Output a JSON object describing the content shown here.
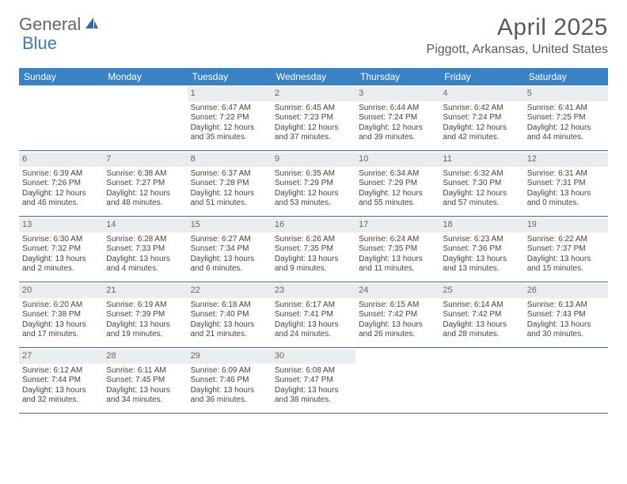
{
  "logo": {
    "text1": "General",
    "text2": "Blue"
  },
  "title": "April 2025",
  "location": "Piggott, Arkansas, United States",
  "colors": {
    "header_bg": "#3b82c4",
    "header_text": "#ffffff",
    "daynum_bg": "#e9edf0",
    "week_border": "#3b6fa0",
    "logo_accent": "#3b7ab8"
  },
  "day_names": [
    "Sunday",
    "Monday",
    "Tuesday",
    "Wednesday",
    "Thursday",
    "Friday",
    "Saturday"
  ],
  "weeks": [
    [
      {
        "n": "",
        "l1": "",
        "l2": "",
        "l3": "",
        "l4": ""
      },
      {
        "n": "",
        "l1": "",
        "l2": "",
        "l3": "",
        "l4": ""
      },
      {
        "n": "1",
        "l1": "Sunrise: 6:47 AM",
        "l2": "Sunset: 7:22 PM",
        "l3": "Daylight: 12 hours",
        "l4": "and 35 minutes."
      },
      {
        "n": "2",
        "l1": "Sunrise: 6:45 AM",
        "l2": "Sunset: 7:23 PM",
        "l3": "Daylight: 12 hours",
        "l4": "and 37 minutes."
      },
      {
        "n": "3",
        "l1": "Sunrise: 6:44 AM",
        "l2": "Sunset: 7:24 PM",
        "l3": "Daylight: 12 hours",
        "l4": "and 39 minutes."
      },
      {
        "n": "4",
        "l1": "Sunrise: 6:42 AM",
        "l2": "Sunset: 7:24 PM",
        "l3": "Daylight: 12 hours",
        "l4": "and 42 minutes."
      },
      {
        "n": "5",
        "l1": "Sunrise: 6:41 AM",
        "l2": "Sunset: 7:25 PM",
        "l3": "Daylight: 12 hours",
        "l4": "and 44 minutes."
      }
    ],
    [
      {
        "n": "6",
        "l1": "Sunrise: 6:39 AM",
        "l2": "Sunset: 7:26 PM",
        "l3": "Daylight: 12 hours",
        "l4": "and 46 minutes."
      },
      {
        "n": "7",
        "l1": "Sunrise: 6:38 AM",
        "l2": "Sunset: 7:27 PM",
        "l3": "Daylight: 12 hours",
        "l4": "and 48 minutes."
      },
      {
        "n": "8",
        "l1": "Sunrise: 6:37 AM",
        "l2": "Sunset: 7:28 PM",
        "l3": "Daylight: 12 hours",
        "l4": "and 51 minutes."
      },
      {
        "n": "9",
        "l1": "Sunrise: 6:35 AM",
        "l2": "Sunset: 7:29 PM",
        "l3": "Daylight: 12 hours",
        "l4": "and 53 minutes."
      },
      {
        "n": "10",
        "l1": "Sunrise: 6:34 AM",
        "l2": "Sunset: 7:29 PM",
        "l3": "Daylight: 12 hours",
        "l4": "and 55 minutes."
      },
      {
        "n": "11",
        "l1": "Sunrise: 6:32 AM",
        "l2": "Sunset: 7:30 PM",
        "l3": "Daylight: 12 hours",
        "l4": "and 57 minutes."
      },
      {
        "n": "12",
        "l1": "Sunrise: 6:31 AM",
        "l2": "Sunset: 7:31 PM",
        "l3": "Daylight: 13 hours",
        "l4": "and 0 minutes."
      }
    ],
    [
      {
        "n": "13",
        "l1": "Sunrise: 6:30 AM",
        "l2": "Sunset: 7:32 PM",
        "l3": "Daylight: 13 hours",
        "l4": "and 2 minutes."
      },
      {
        "n": "14",
        "l1": "Sunrise: 6:28 AM",
        "l2": "Sunset: 7:33 PM",
        "l3": "Daylight: 13 hours",
        "l4": "and 4 minutes."
      },
      {
        "n": "15",
        "l1": "Sunrise: 6:27 AM",
        "l2": "Sunset: 7:34 PM",
        "l3": "Daylight: 13 hours",
        "l4": "and 6 minutes."
      },
      {
        "n": "16",
        "l1": "Sunrise: 6:26 AM",
        "l2": "Sunset: 7:35 PM",
        "l3": "Daylight: 13 hours",
        "l4": "and 9 minutes."
      },
      {
        "n": "17",
        "l1": "Sunrise: 6:24 AM",
        "l2": "Sunset: 7:35 PM",
        "l3": "Daylight: 13 hours",
        "l4": "and 11 minutes."
      },
      {
        "n": "18",
        "l1": "Sunrise: 6:23 AM",
        "l2": "Sunset: 7:36 PM",
        "l3": "Daylight: 13 hours",
        "l4": "and 13 minutes."
      },
      {
        "n": "19",
        "l1": "Sunrise: 6:22 AM",
        "l2": "Sunset: 7:37 PM",
        "l3": "Daylight: 13 hours",
        "l4": "and 15 minutes."
      }
    ],
    [
      {
        "n": "20",
        "l1": "Sunrise: 6:20 AM",
        "l2": "Sunset: 7:38 PM",
        "l3": "Daylight: 13 hours",
        "l4": "and 17 minutes."
      },
      {
        "n": "21",
        "l1": "Sunrise: 6:19 AM",
        "l2": "Sunset: 7:39 PM",
        "l3": "Daylight: 13 hours",
        "l4": "and 19 minutes."
      },
      {
        "n": "22",
        "l1": "Sunrise: 6:18 AM",
        "l2": "Sunset: 7:40 PM",
        "l3": "Daylight: 13 hours",
        "l4": "and 21 minutes."
      },
      {
        "n": "23",
        "l1": "Sunrise: 6:17 AM",
        "l2": "Sunset: 7:41 PM",
        "l3": "Daylight: 13 hours",
        "l4": "and 24 minutes."
      },
      {
        "n": "24",
        "l1": "Sunrise: 6:15 AM",
        "l2": "Sunset: 7:42 PM",
        "l3": "Daylight: 13 hours",
        "l4": "and 26 minutes."
      },
      {
        "n": "25",
        "l1": "Sunrise: 6:14 AM",
        "l2": "Sunset: 7:42 PM",
        "l3": "Daylight: 13 hours",
        "l4": "and 28 minutes."
      },
      {
        "n": "26",
        "l1": "Sunrise: 6:13 AM",
        "l2": "Sunset: 7:43 PM",
        "l3": "Daylight: 13 hours",
        "l4": "and 30 minutes."
      }
    ],
    [
      {
        "n": "27",
        "l1": "Sunrise: 6:12 AM",
        "l2": "Sunset: 7:44 PM",
        "l3": "Daylight: 13 hours",
        "l4": "and 32 minutes."
      },
      {
        "n": "28",
        "l1": "Sunrise: 6:11 AM",
        "l2": "Sunset: 7:45 PM",
        "l3": "Daylight: 13 hours",
        "l4": "and 34 minutes."
      },
      {
        "n": "29",
        "l1": "Sunrise: 6:09 AM",
        "l2": "Sunset: 7:46 PM",
        "l3": "Daylight: 13 hours",
        "l4": "and 36 minutes."
      },
      {
        "n": "30",
        "l1": "Sunrise: 6:08 AM",
        "l2": "Sunset: 7:47 PM",
        "l3": "Daylight: 13 hours",
        "l4": "and 38 minutes."
      },
      {
        "n": "",
        "l1": "",
        "l2": "",
        "l3": "",
        "l4": ""
      },
      {
        "n": "",
        "l1": "",
        "l2": "",
        "l3": "",
        "l4": ""
      },
      {
        "n": "",
        "l1": "",
        "l2": "",
        "l3": "",
        "l4": ""
      }
    ]
  ]
}
